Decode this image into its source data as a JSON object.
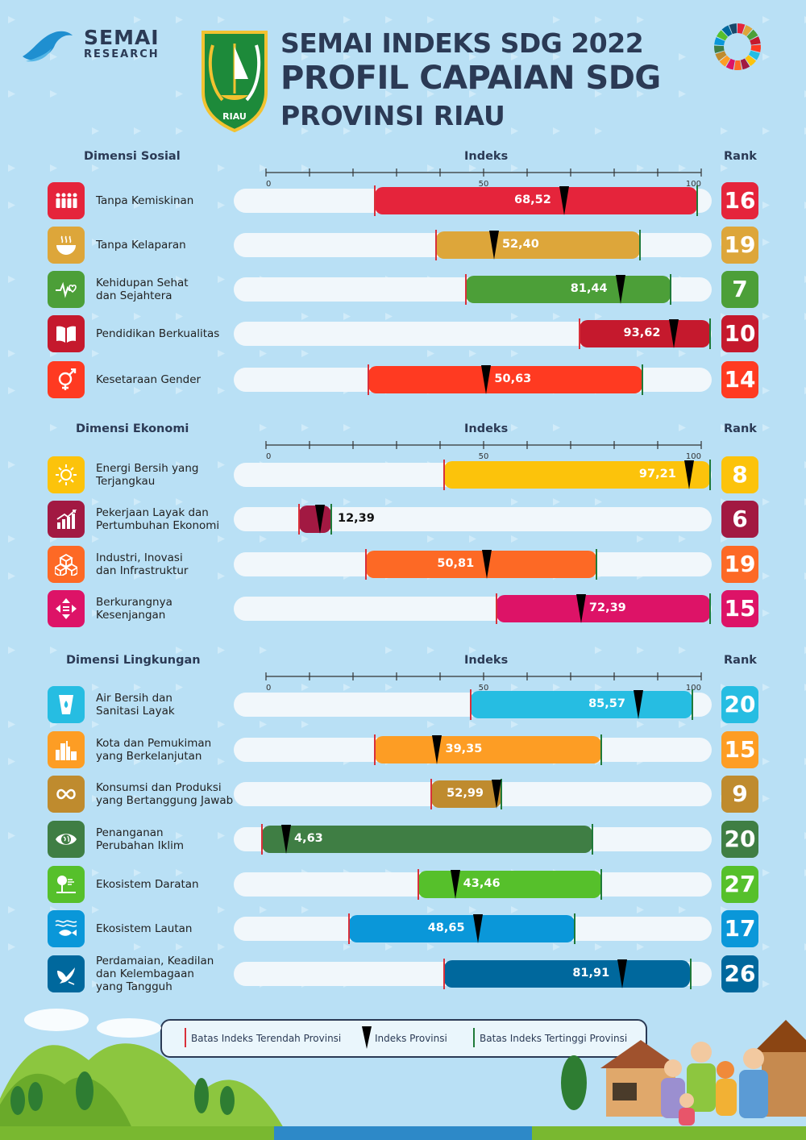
{
  "brand": {
    "name": "SEMAI",
    "sub": "RESEARCH"
  },
  "crest": {
    "text": "RIAU"
  },
  "title": {
    "line1": "SEMAI INDEKS SDG 2022",
    "line2": "PROFIL CAPAIAN SDG",
    "line3": "PROVINSI RIAU"
  },
  "columns": {
    "index": "Indeks",
    "rank": "Rank"
  },
  "scale": {
    "t0": "0",
    "t50": "50",
    "t100": "100"
  },
  "colors": {
    "title": "#2b3a55",
    "low_marker": "#d9303b",
    "high_marker": "#1f7a3a",
    "track": "#f1f7fb",
    "background": "#b9e0f5"
  },
  "sections": [
    {
      "name": "Dimensi Sosial",
      "rows": [
        {
          "label": "Tanpa Kemiskinan",
          "icon": "people-icon",
          "color": "#e5243b",
          "low": 25,
          "high": 99,
          "value": 68.52,
          "value_text": "68,52",
          "rank": "16"
        },
        {
          "label": "Tanpa Kelaparan",
          "icon": "bowl-icon",
          "color": "#dda63a",
          "low": 39,
          "high": 86,
          "value": 52.4,
          "value_text": "52,40",
          "rank": "19"
        },
        {
          "label": "Kehidupan Sehat\ndan Sejahtera",
          "icon": "heartbeat-icon",
          "color": "#4c9f38",
          "low": 46,
          "high": 93,
          "value": 81.44,
          "value_text": "81,44",
          "rank": "7"
        },
        {
          "label": "Pendidikan Berkualitas",
          "icon": "book-icon",
          "color": "#c5192d",
          "low": 72,
          "high": 102,
          "value": 93.62,
          "value_text": "93,62",
          "rank": "10"
        },
        {
          "label": "Kesetaraan Gender",
          "icon": "gender-icon",
          "color": "#ff3a21",
          "low": 23.5,
          "high": 86.5,
          "value": 50.63,
          "value_text": "50,63",
          "rank": "14"
        }
      ]
    },
    {
      "name": "Dimensi Ekonomi",
      "rows": [
        {
          "label": "Energi Bersih yang\nTerjangkau",
          "icon": "sun-icon",
          "color": "#fcc30b",
          "low": 41,
          "high": 102,
          "value": 97.21,
          "value_text": "97,21",
          "rank": "8"
        },
        {
          "label": "Pekerjaan Layak dan\nPertumbuhan Ekonomi",
          "icon": "growth-chart-icon",
          "color": "#a21942",
          "low": 7.5,
          "high": 15,
          "value": 12.39,
          "value_text": "12,39",
          "rank": "6"
        },
        {
          "label": "Industri, Inovasi\ndan Infrastruktur",
          "icon": "cubes-icon",
          "color": "#fd6925",
          "low": 23,
          "high": 76,
          "value": 50.81,
          "value_text": "50,81",
          "rank": "19"
        },
        {
          "label": "Berkurangnya\nKesenjangan",
          "icon": "equality-icon",
          "color": "#dd1367",
          "low": 53,
          "high": 102,
          "value": 72.39,
          "value_text": "72,39",
          "rank": "15"
        }
      ]
    },
    {
      "name": "Dimensi Lingkungan",
      "rows": [
        {
          "label": "Air Bersih dan\nSanitasi Layak",
          "icon": "water-drop-icon",
          "color": "#26bde2",
          "low": 47,
          "high": 98,
          "value": 85.57,
          "value_text": "85,57",
          "rank": "20"
        },
        {
          "label": "Kota dan Pemukiman\nyang Berkelanjutan",
          "icon": "city-icon",
          "color": "#fd9d24",
          "low": 25,
          "high": 77,
          "value": 39.35,
          "value_text": "39,35",
          "rank": "15"
        },
        {
          "label": "Konsumsi dan Produksi\nyang Bertanggung Jawab",
          "icon": "infinity-icon",
          "color": "#bf8b2e",
          "low": 38,
          "high": 54,
          "value": 52.99,
          "value_text": "52,99",
          "rank": "9"
        },
        {
          "label": "Penanganan\nPerubahan Iklim",
          "icon": "eye-globe-icon",
          "color": "#3f7e44",
          "low": -1,
          "high": 75,
          "value": 4.63,
          "value_text": "4,63",
          "rank": "20"
        },
        {
          "label": "Ekosistem Daratan",
          "icon": "tree-icon",
          "color": "#56c02b",
          "low": 35,
          "high": 77,
          "value": 43.46,
          "value_text": "43,46",
          "rank": "27"
        },
        {
          "label": "Ekosistem Lautan",
          "icon": "fish-icon",
          "color": "#0a97d9",
          "low": 19,
          "high": 71,
          "value": 48.65,
          "value_text": "48,65",
          "rank": "17"
        },
        {
          "label": "Perdamaian, Keadilan\ndan Kelembagaan\nyang Tangguh",
          "icon": "dove-icon",
          "color": "#00689d",
          "low": 41,
          "high": 97.5,
          "value": 81.91,
          "value_text": "81,91",
          "rank": "26"
        }
      ]
    }
  ],
  "legend": {
    "low": "Batas Indeks Terendah Provinsi",
    "index": "Indeks Provinsi",
    "high": "Batas Indeks Tertinggi Provinsi"
  }
}
